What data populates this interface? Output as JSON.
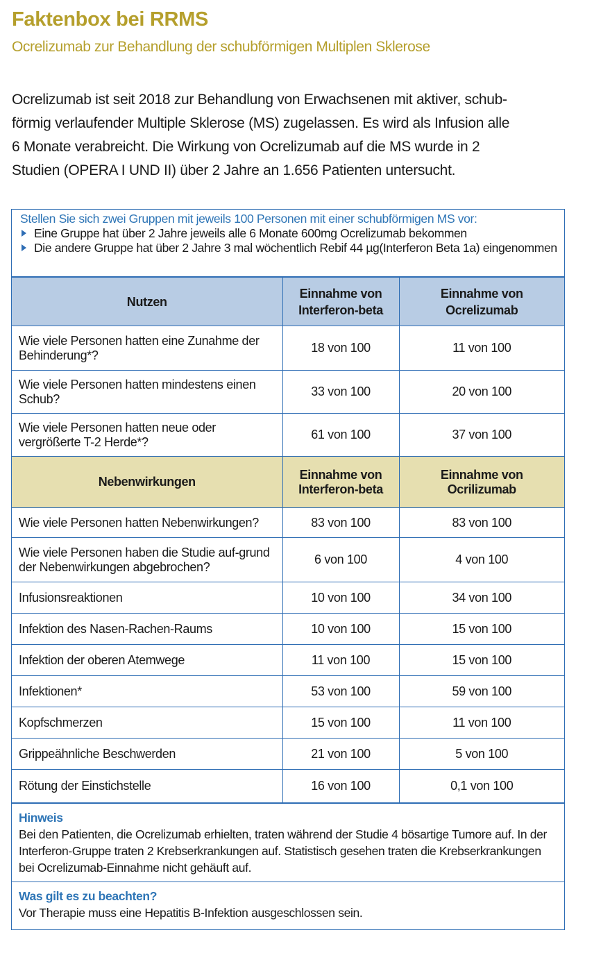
{
  "header": {
    "title": "Faktenbox bei RRMS",
    "subtitle": "Ocrelizumab zur Behandlung der schubförmigen Multiplen Sklerose"
  },
  "intro": {
    "lines": [
      "Ocrelizumab ist seit 2018 zur Behandlung von Erwachsenen mit aktiver, schub-",
      "förmig verlaufender Multiple Sklerose (MS) zugelassen. Es wird als Infusion alle",
      "6 Monate  verabreicht. Die Wirkung von Ocrelizumab auf die MS wurde in 2",
      "Studien (OPERA I UND II) über 2 Jahre an 1.656 Patienten untersucht."
    ]
  },
  "scenario": {
    "question": "Stellen Sie sich zwei Gruppen mit jeweils 100 Personen mit einer schubförmigen MS vor:",
    "bullets": [
      "Eine Gruppe hat über 2 Jahre jeweils alle 6 Monate 600mg Ocrelizumab bekommen",
      "Die andere Gruppe hat über 2 Jahre  3 mal wöchentlich Rebif 44 µg(Interferon Beta 1a) eingenommen"
    ]
  },
  "benefit": {
    "header": [
      "Nutzen",
      "Einnahme von Interferon-beta",
      "Einnahme von Ocrelizumab"
    ],
    "header_color": "#b8cce4",
    "rows": [
      [
        "Wie viele Personen hatten eine Zunahme der Behinderung*?",
        "18 von 100",
        "11 von 100"
      ],
      [
        "Wie viele Personen hatten mindestens einen Schub?",
        "33 von 100",
        "20 von 100"
      ],
      [
        "Wie viele Personen hatten neue oder vergrößerte T-2 Herde*?",
        "61 von 100",
        "37 von 100"
      ]
    ]
  },
  "harm": {
    "header": [
      "Nebenwirkungen",
      "Einnahme von Interferon-beta",
      "Einnahme von Ocrilizumab"
    ],
    "header_color": "#e6dfb0",
    "rows": [
      [
        "Wie viele Personen hatten Nebenwirkungen?",
        "83 von 100",
        "83 von 100"
      ],
      [
        "Wie viele Personen haben die Studie auf-grund der Nebenwirkungen abgebrochen?",
        "6 von 100",
        "4 von 100"
      ],
      [
        "Infusionsreaktionen",
        "10 von 100",
        "34 von 100"
      ],
      [
        "Infektion des Nasen-Rachen-Raums",
        "10 von 100",
        "15 von 100"
      ],
      [
        "Infektion der oberen Atemwege",
        "11 von 100",
        "15 von 100"
      ],
      [
        "Infektionen*",
        "53 von 100",
        "59 von 100"
      ],
      [
        "Kopfschmerzen",
        "15 von 100",
        "11 von 100"
      ],
      [
        "Grippeähnliche Beschwerden",
        "21 von 100",
        "5 von 100"
      ],
      [
        "Rötung der Einstichstelle",
        "16 von 100",
        "0,1 von 100"
      ]
    ]
  },
  "notes": [
    {
      "heading": "Hinweis",
      "text": "Bei den Patienten, die Ocrelizumab erhielten, traten während der Studie 4 bösartige Tumore auf. In der Interferon-Gruppe traten 2 Krebserkrankungen auf. Statistisch gesehen traten die Krebserkrankungen bei Ocrelizumab-Einnahme nicht gehäuft auf."
    },
    {
      "heading": "Was gilt es zu beachten?",
      "text": "Vor Therapie muss eine Hepatitis B-Infektion ausgeschlossen sein."
    }
  ],
  "colors": {
    "title": "#b59f2c",
    "accent_blue": "#2e6db4",
    "blue_text": "#2e75b6"
  }
}
